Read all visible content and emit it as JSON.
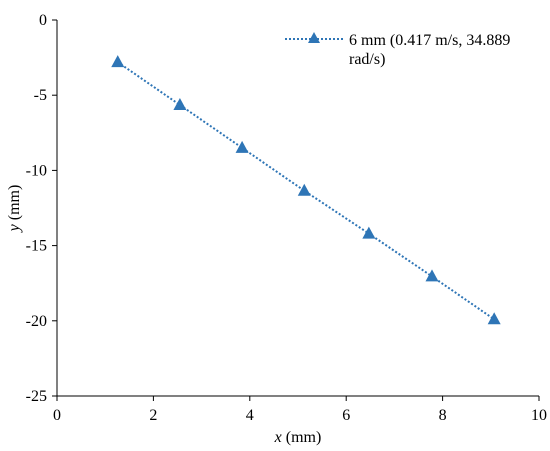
{
  "chart_data": {
    "type": "scatter",
    "xlabel": {
      "var": "x",
      "unit": " (mm)"
    },
    "ylabel": {
      "var": "y",
      "unit": " (mm)"
    },
    "xlim": [
      0,
      10
    ],
    "ylim": [
      -25,
      0
    ],
    "xticks": [
      "0",
      "2",
      "4",
      "6",
      "8",
      "10"
    ],
    "yticks": [
      "0",
      "-5",
      "-10",
      "-15",
      "-20",
      "-25"
    ],
    "grid": false,
    "legend_position": "top-right",
    "series": [
      {
        "name_line1": "6 mm (0.417 m/s, 34.889",
        "name_line2": "rad/s)",
        "color": "#2E75B6",
        "marker": "triangle",
        "line_style": "dotted",
        "x": [
          1.26,
          2.55,
          3.84,
          5.13,
          6.47,
          7.78,
          9.07
        ],
        "y": [
          -2.8,
          -5.65,
          -8.5,
          -11.35,
          -14.2,
          -17.05,
          -19.9
        ]
      }
    ]
  }
}
